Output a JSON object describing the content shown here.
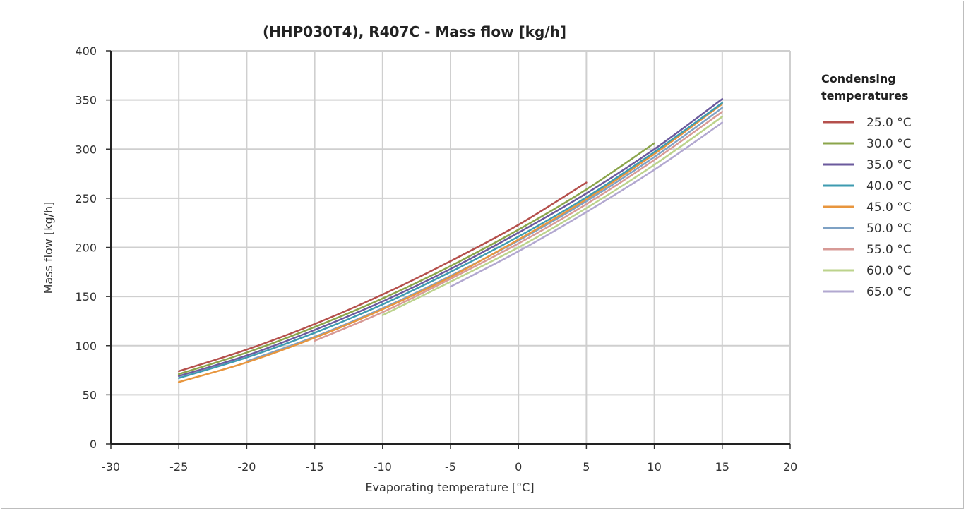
{
  "chart_data": {
    "type": "line",
    "title": "(HHP030T4), R407C - Mass flow [kg/h]",
    "xlabel": "Evaporating temperature [°C]",
    "ylabel": "Mass flow [kg/h]",
    "xlim": [
      -30,
      20
    ],
    "ylim": [
      0,
      400
    ],
    "xticks": [
      -30,
      -25,
      -20,
      -15,
      -10,
      -5,
      0,
      5,
      10,
      15,
      20
    ],
    "yticks": [
      0,
      50,
      100,
      150,
      200,
      250,
      300,
      350,
      400
    ],
    "grid": true,
    "legend": {
      "title_lines": [
        "Condensing",
        "temperatures"
      ],
      "placement": "right"
    },
    "series": [
      {
        "name": "25.0 °C",
        "color": "#b5504c",
        "x": [
          -25,
          -20,
          -15,
          -10,
          -5,
          0,
          5
        ],
        "y": [
          74,
          96,
          122,
          152,
          186,
          223,
          266
        ]
      },
      {
        "name": "30.0 °C",
        "color": "#8ba54b",
        "x": [
          -25,
          -20,
          -15,
          -10,
          -5,
          0,
          5,
          10
        ],
        "y": [
          71,
          93,
          119,
          148,
          181,
          218,
          259,
          306
        ]
      },
      {
        "name": "35.0 °C",
        "color": "#6b5a9d",
        "x": [
          -25,
          -20,
          -15,
          -10,
          -5,
          0,
          5,
          10,
          15
        ],
        "y": [
          69,
          90,
          116,
          145,
          178,
          215,
          255,
          300,
          351
        ]
      },
      {
        "name": "40.0 °C",
        "color": "#3e9bb0",
        "x": [
          -25,
          -20,
          -15,
          -10,
          -5,
          0,
          5,
          10,
          15
        ],
        "y": [
          67,
          88,
          113,
          142,
          175,
          211,
          251,
          297,
          347
        ]
      },
      {
        "name": "45.0 °C",
        "color": "#e8963e",
        "x": [
          -25,
          -20,
          -15,
          -10,
          -5,
          0,
          5,
          10,
          15
        ],
        "y": [
          63,
          83,
          108,
          137,
          170,
          208,
          249,
          295,
          346
        ]
      },
      {
        "name": "50.0 °C",
        "color": "#7ea1c4",
        "x": [
          -20,
          -15,
          -10,
          -5,
          0,
          5,
          10,
          15
        ],
        "y": [
          84,
          109,
          138,
          171,
          207,
          247,
          292,
          342
        ]
      },
      {
        "name": "55.0 °C",
        "color": "#d79a96",
        "x": [
          -15,
          -10,
          -5,
          0,
          5,
          10,
          15
        ],
        "y": [
          105,
          134,
          168,
          204,
          244,
          289,
          338
        ]
      },
      {
        "name": "60.0 °C",
        "color": "#bcd38c",
        "x": [
          -10,
          -5,
          0,
          5,
          10,
          15
        ],
        "y": [
          131,
          165,
          200,
          240,
          284,
          333
        ]
      },
      {
        "name": "65.0 °C",
        "color": "#b2a8d0",
        "x": [
          -5,
          0,
          5,
          10,
          15
        ],
        "y": [
          160,
          196,
          236,
          279,
          327
        ]
      }
    ]
  }
}
